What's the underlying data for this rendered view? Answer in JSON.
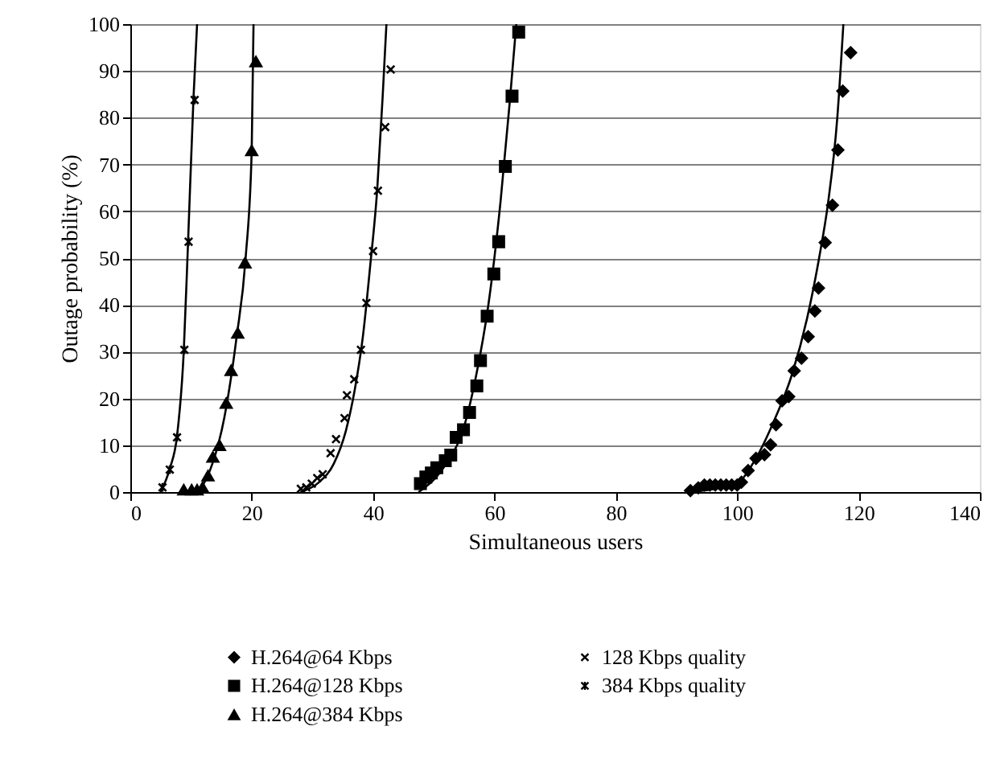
{
  "chart_data": {
    "type": "scatter",
    "xlabel": "Simultaneous users",
    "ylabel": "Outage probability (%)",
    "xlim": [
      0,
      140
    ],
    "xticks": [
      0,
      20,
      40,
      60,
      80,
      100,
      120,
      140
    ],
    "ylim": [
      0,
      100
    ],
    "yticks": [
      0,
      10,
      20,
      30,
      40,
      50,
      60,
      70,
      80,
      90,
      100
    ],
    "grid": "y",
    "legend": "bottom",
    "series": [
      {
        "name": "H.264@64 Kbps",
        "marker": "diamond",
        "color": "#000000",
        "x": [
          92.3,
          93.6,
          94.6,
          95.5,
          96.4,
          97.3,
          98.2,
          99.1,
          100.0,
          100.7,
          101.8,
          103.1,
          104.5,
          105.5,
          106.4,
          107.4,
          108.5,
          109.4,
          110.6,
          111.7,
          112.8,
          113.4,
          114.5,
          115.7,
          116.6,
          117.4,
          118.7
        ],
        "values": [
          0.3,
          0.9,
          1.5,
          1.5,
          1.5,
          1.5,
          1.5,
          1.5,
          1.5,
          2.1,
          4.6,
          7.2,
          8.0,
          10.1,
          14.4,
          19.5,
          20.4,
          25.9,
          28.6,
          33.2,
          38.7,
          43.6,
          53.3,
          61.3,
          73.1,
          85.7,
          93.9
        ]
      },
      {
        "name": "H.264@128 Kbps",
        "marker": "square",
        "color": "#000000",
        "x": [
          47.8,
          48.7,
          49.6,
          50.5,
          51.9,
          52.8,
          53.7,
          54.9,
          55.9,
          57.1,
          57.7,
          58.8,
          59.9,
          60.7,
          61.8,
          62.9,
          64.0
        ],
        "values": [
          1.8,
          3.2,
          4.1,
          5.2,
          6.7,
          7.9,
          11.7,
          13.3,
          17,
          22.7,
          28.1,
          37.6,
          46.6,
          53.5,
          69.6,
          84.6,
          98.3
        ]
      },
      {
        "name": "H.264@384 Kbps",
        "marker": "triangle",
        "color": "#000000",
        "x": [
          8.8,
          10.1,
          11.0,
          11.9,
          12.8,
          13.6,
          14.7,
          15.8,
          16.6,
          17.7,
          18.9,
          20.0,
          20.7
        ],
        "values": [
          0.5,
          0.5,
          0.5,
          1,
          3.5,
          7.5,
          10,
          19,
          26,
          34,
          49,
          73,
          92
        ]
      },
      {
        "name": "128 Kbps quality",
        "marker": "cross",
        "color": "#000000",
        "x": [
          28.1,
          29.0,
          29.9,
          30.8,
          31.7,
          33.0,
          33.9,
          35.3,
          35.7,
          36.9,
          38.0,
          38.9,
          40.0,
          40.8,
          42.0,
          42.9
        ],
        "values": [
          0.7,
          1,
          1.8,
          3,
          3.8,
          8.3,
          11.3,
          15.8,
          20.7,
          24.1,
          30.4,
          40.4,
          51.5,
          64.4,
          78,
          90.3
        ]
      },
      {
        "name": "384 Kbps quality",
        "color": "#000000",
        "x": [
          5.3,
          6.5,
          7.7,
          8.9,
          9.6,
          10.6
        ],
        "values": [
          1,
          4.8,
          11.7,
          30.4,
          53.5,
          83.8
        ]
      },
      {
        "type": "line",
        "color": "#000000",
        "x": [
          92,
          100,
          103,
          106,
          109,
          111.5,
          113.5,
          115,
          116.5,
          117.5
        ],
        "values": [
          0,
          2,
          7,
          15,
          25,
          37,
          50,
          62,
          80,
          100
        ]
      },
      {
        "type": "line",
        "color": "#000000",
        "x": [
          47.5,
          52,
          55,
          57,
          59,
          61,
          62.5,
          63.6
        ],
        "values": [
          0,
          6,
          14,
          25,
          40,
          62,
          83,
          100
        ]
      },
      {
        "type": "line",
        "color": "#000000",
        "x": [
          8.5,
          11.5,
          13.5,
          15.5,
          17.5,
          19,
          20,
          20.3
        ],
        "values": [
          0,
          1,
          6,
          16,
          33,
          50,
          73,
          100
        ]
      },
      {
        "type": "line",
        "color": "#000000",
        "x": [
          28,
          31,
          33.5,
          35.5,
          37,
          38.3,
          39.5,
          40.7,
          41.6,
          42.2
        ],
        "values": [
          0,
          2,
          6,
          13,
          22,
          33,
          48,
          65,
          85,
          100
        ]
      },
      {
        "type": "line",
        "color": "#000000",
        "x": [
          5,
          6.5,
          7.7,
          8.8,
          9.5,
          10.4,
          11
        ],
        "values": [
          0,
          5,
          12,
          30,
          53,
          84,
          100
        ]
      }
    ]
  }
}
